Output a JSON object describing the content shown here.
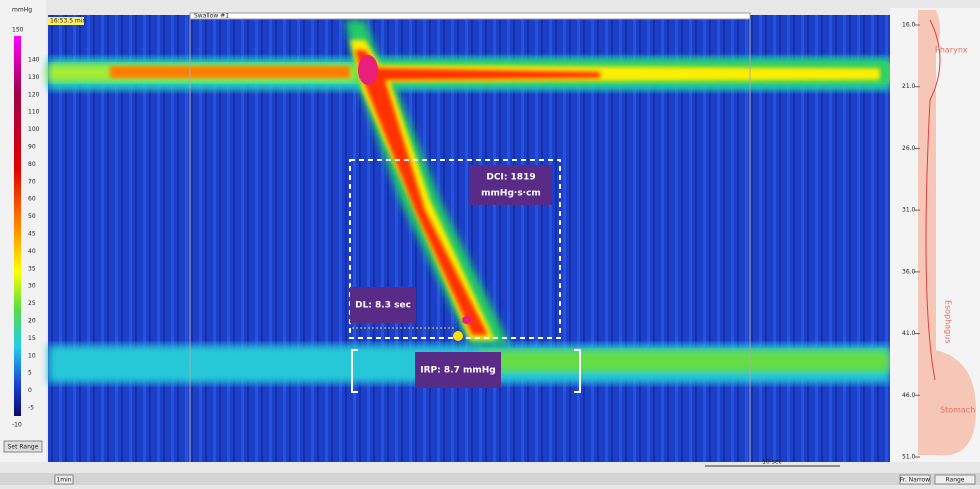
{
  "left_panel": {
    "unit": "mmHg",
    "max": "150",
    "scale": [
      "140",
      "130",
      "120",
      "110",
      "100",
      "90",
      "80",
      "70",
      "60",
      "50",
      "45",
      "40",
      "35",
      "30",
      "25",
      "20",
      "15",
      "10",
      "5",
      "0",
      "-5"
    ],
    "min": "-10",
    "button": "Set Range"
  },
  "plot": {
    "time": "16:53.5 min",
    "tag": "Swallow #1",
    "dci": [
      "DCI: 1819",
      "mmHg·s·cm"
    ],
    "dl": "DL: 8.3 sec",
    "irp": "IRP: 8.7 mmHg",
    "timebar": "10 sec"
  },
  "right_panel": {
    "scale": [
      "16.0",
      "21.0",
      "26.0",
      "31.0",
      "36.0",
      "41.0",
      "46.0",
      "51.0"
    ],
    "regions": [
      "Pharynx",
      "Esophagus",
      "Stomach"
    ]
  },
  "toolbar": {
    "left": "1min",
    "right": [
      "Fr. Narrow",
      "Range"
    ]
  }
}
